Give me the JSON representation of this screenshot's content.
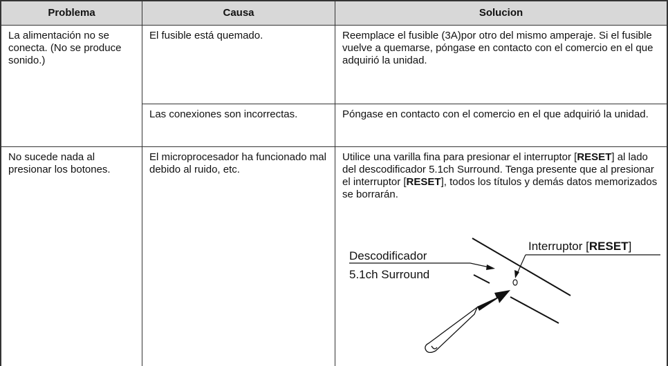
{
  "table": {
    "headers": [
      "Problema",
      "Causa",
      "Solucion"
    ],
    "rows": [
      {
        "problema": "La alimentación no se conecta. (No se produce sonido.)",
        "items": [
          {
            "causa": "El fusible está quemado.",
            "solucion": "Reemplace el fusible (3A)por otro del mismo amperaje. Si el fusible vuelve a quemarse, póngase en contacto con el comercio en el que adquirió la unidad."
          },
          {
            "causa": "Las conexiones son incorrectas.",
            "solucion": "Póngase en contacto con el comercio en el que adquirió la unidad."
          }
        ]
      },
      {
        "problema": "No sucede nada al presionar los botones.",
        "items": [
          {
            "causa": "El microprocesador ha funcionado mal debido al ruido, etc.",
            "solucion_runs": [
              "Utilice una varilla fina para presionar el interruptor [",
              "RESET",
              "] al lado del descodificador 5.1ch Surround. Tenga presente que al presionar el interruptor [",
              "RESET",
              "], todos los títulos y demás datos memorizados se borrarán."
            ]
          }
        ]
      }
    ]
  },
  "diagram": {
    "left_label_1": "Descodificador",
    "left_label_2": "5.1ch Surround",
    "right_label_runs": [
      "Interruptor [",
      "RESET",
      "]"
    ]
  }
}
